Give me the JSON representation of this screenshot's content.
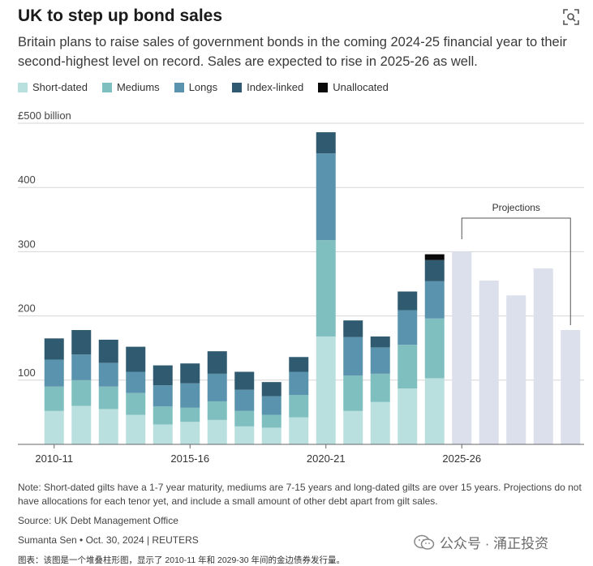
{
  "title": "UK to step up bond sales",
  "subtitle": "Britain plans to raise sales of government bonds in the coming 2024-25 financial year to their second-highest level on record. Sales are expected to rise in 2025-26 as well.",
  "legend": [
    {
      "label": "Short-dated",
      "color": "#b9e0de"
    },
    {
      "label": "Mediums",
      "color": "#7fbfbf"
    },
    {
      "label": "Longs",
      "color": "#5a93ae"
    },
    {
      "label": "Index-linked",
      "color": "#2f5a6f"
    },
    {
      "label": "Unallocated",
      "color": "#0a0a0a"
    }
  ],
  "projection_color": "#dcdfec",
  "chart_data": {
    "type": "bar",
    "stacked": true,
    "ylabel": "£500 billion",
    "ylim": [
      0,
      500
    ],
    "yticks": [
      100,
      200,
      300,
      400
    ],
    "grid": true,
    "categories": [
      "2010-11",
      "2011-12",
      "2012-13",
      "2013-14",
      "2014-15",
      "2015-16",
      "2016-17",
      "2017-18",
      "2018-19",
      "2019-20",
      "2020-21",
      "2021-22",
      "2022-23",
      "2023-24",
      "2024-25",
      "2025-26",
      "2026-27",
      "2027-28",
      "2028-29",
      "2029-30"
    ],
    "xtick_labels": [
      {
        "index": 0,
        "label": "2010-11"
      },
      {
        "index": 5,
        "label": "2015-16"
      },
      {
        "index": 10,
        "label": "2020-21"
      },
      {
        "index": 15,
        "label": "2025-26"
      }
    ],
    "series": [
      {
        "name": "Short-dated",
        "values": [
          52,
          60,
          55,
          46,
          31,
          35,
          38,
          28,
          26,
          42,
          168,
          52,
          66,
          87,
          103,
          null,
          null,
          null,
          null,
          null
        ]
      },
      {
        "name": "Mediums",
        "values": [
          38,
          40,
          35,
          34,
          28,
          22,
          29,
          24,
          20,
          35,
          150,
          55,
          44,
          68,
          93,
          null,
          null,
          null,
          null,
          null
        ]
      },
      {
        "name": "Longs",
        "values": [
          42,
          40,
          37,
          33,
          33,
          38,
          43,
          33,
          29,
          36,
          135,
          60,
          41,
          54,
          58,
          null,
          null,
          null,
          null,
          null
        ]
      },
      {
        "name": "Index-linked",
        "values": [
          33,
          38,
          36,
          39,
          31,
          31,
          35,
          28,
          22,
          23,
          33,
          26,
          17,
          29,
          33,
          null,
          null,
          null,
          null,
          null
        ]
      },
      {
        "name": "Unallocated",
        "values": [
          0,
          0,
          0,
          0,
          0,
          0,
          0,
          0,
          0,
          0,
          0,
          0,
          0,
          0,
          9,
          null,
          null,
          null,
          null,
          null
        ]
      }
    ],
    "projections": [
      {
        "category": "2025-26",
        "value": 300
      },
      {
        "category": "2026-27",
        "value": 255
      },
      {
        "category": "2027-28",
        "value": 232
      },
      {
        "category": "2028-29",
        "value": 274
      },
      {
        "category": "2029-30",
        "value": 178
      }
    ],
    "annotation": "Projections"
  },
  "note": "Note: Short-dated gilts have a 1-7 year maturity, mediums are 7-15 years and long-dated gilts are over 15 years. Projections do not have allocations for each tenor yet, and include a small amount of other debt apart from gilt sales.",
  "source": "Source: UK Debt Management Office",
  "byline": "Sumanta Sen • Oct. 30, 2024 | REUTERS",
  "watermark": "公众号 · 涌正投资",
  "caption": "图表：该图是一个堆叠柱形图，显示了 2010-11 年和 2029-30 年间的金边债券发行量。"
}
